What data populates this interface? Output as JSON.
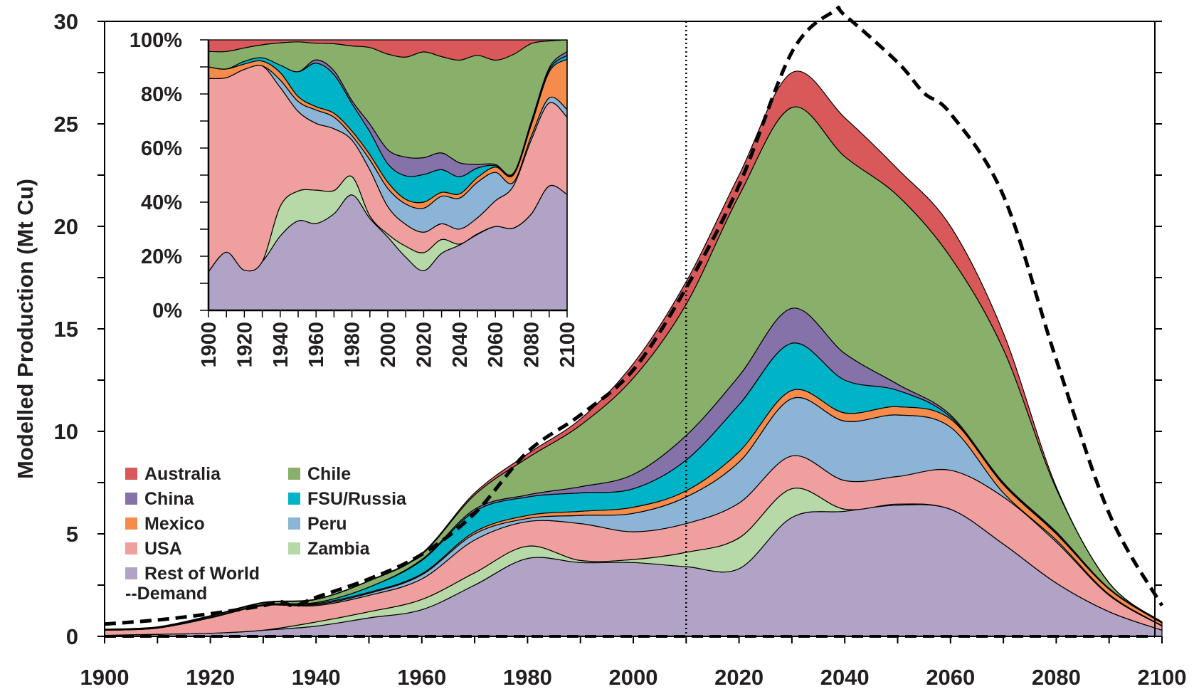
{
  "chart_data": [
    {
      "type": "area",
      "stacked": true,
      "ylabel": "Modelled Production (Mt Cu)",
      "xlabel": "",
      "xlim": [
        1900,
        2100
      ],
      "ylim": [
        0,
        30
      ],
      "x_ticks": [
        "1900",
        "1920",
        "1940",
        "1960",
        "1980",
        "2000",
        "2020",
        "2040",
        "2060",
        "2080",
        "2100"
      ],
      "y_ticks": [
        "0",
        "5",
        "10",
        "15",
        "20",
        "25",
        "30"
      ],
      "grid": false,
      "legend_placement": "bottom-left",
      "vertical_marker_year": 2010,
      "x": [
        1900,
        1910,
        1920,
        1930,
        1940,
        1950,
        1960,
        1970,
        1980,
        1990,
        2000,
        2010,
        2020,
        2030,
        2040,
        2050,
        2060,
        2070,
        2080,
        2090,
        2100
      ],
      "series": [
        {
          "name": "Rest of World",
          "color": "#b0a3c6",
          "values": [
            0.05,
            0.1,
            0.15,
            0.3,
            0.5,
            0.9,
            1.3,
            2.5,
            3.8,
            3.6,
            3.6,
            3.4,
            3.3,
            5.8,
            6.1,
            6.4,
            6.2,
            4.5,
            2.6,
            1.2,
            0.3
          ]
        },
        {
          "name": "Zambia",
          "color": "#b7d9a7",
          "values": [
            0,
            0,
            0,
            0,
            0.2,
            0.3,
            0.5,
            0.6,
            0.6,
            0.1,
            0.15,
            0.7,
            1.5,
            1.4,
            0.1,
            0.05,
            0,
            0,
            0,
            0,
            0
          ]
        },
        {
          "name": "USA",
          "color": "#efa09e",
          "values": [
            0.25,
            0.3,
            0.75,
            1.2,
            0.8,
            0.8,
            1.0,
            1.6,
            1.2,
            1.8,
            1.35,
            1.4,
            1.7,
            1.6,
            1.4,
            1.35,
            1.9,
            2.3,
            2.0,
            0.8,
            0.2
          ]
        },
        {
          "name": "Peru",
          "color": "#8cb4d6",
          "values": [
            0,
            0,
            0,
            0,
            0.05,
            0.1,
            0.2,
            0.3,
            0.15,
            0.4,
            0.9,
            1.3,
            2.0,
            2.8,
            2.9,
            3.0,
            2.1,
            0.2,
            0.1,
            0.05,
            0.02
          ]
        },
        {
          "name": "Mexico",
          "color": "#f58c4c",
          "values": [
            0.015,
            0.015,
            0.02,
            0.03,
            0.05,
            0.05,
            0.05,
            0.1,
            0.15,
            0.2,
            0.3,
            0.3,
            0.5,
            0.4,
            0.4,
            0.4,
            0.4,
            0.4,
            0.3,
            0.25,
            0.13
          ]
        },
        {
          "name": "FSU/Russia",
          "color": "#00b3c6",
          "values": [
            0,
            0,
            0.01,
            0.02,
            0.05,
            0.25,
            0.65,
            1.0,
            0.9,
            0.9,
            0.9,
            1.5,
            2.3,
            2.3,
            1.6,
            0.8,
            0.1,
            0.05,
            0.05,
            0.02,
            0.01
          ]
        },
        {
          "name": "China",
          "color": "#8472a8",
          "values": [
            0,
            0,
            0,
            0,
            0,
            0,
            0.05,
            0.1,
            0.1,
            0.3,
            0.7,
            1.2,
            1.4,
            1.7,
            1.3,
            0.3,
            0.1,
            0.05,
            0.05,
            0.02,
            0.01
          ]
        },
        {
          "name": "Chile",
          "color": "#88b06a",
          "values": [
            0.02,
            0.03,
            0.05,
            0.08,
            0.15,
            0.3,
            0.25,
            0.7,
            1.8,
            3.0,
            4.7,
            6.4,
            8.8,
            9.8,
            9.6,
            9.2,
            7.7,
            6.5,
            2.1,
            0.26,
            0.03
          ]
        },
        {
          "name": "Australia",
          "color": "#d9595b",
          "values": [
            0.015,
            0.02,
            0.03,
            0.03,
            0.02,
            0.02,
            0.05,
            0.1,
            0.2,
            0.3,
            0.7,
            1.1,
            1.0,
            1.7,
            1.9,
            1.3,
            1.5,
            0.8,
            0.1,
            0.01,
            0
          ]
        }
      ],
      "demand": {
        "name": "--Demand",
        "x": [
          1900,
          1910,
          1920,
          1930,
          1933,
          1936,
          1940,
          1950,
          1960,
          1970,
          1980,
          1990,
          2000,
          2010,
          2020,
          2030,
          2038,
          2040,
          2050,
          2055,
          2060,
          2070,
          2080,
          2090,
          2100
        ],
        "values": [
          0.6,
          0.8,
          1.1,
          1.5,
          1.7,
          1.5,
          1.9,
          2.8,
          4.0,
          6.0,
          9.0,
          10.8,
          13.0,
          17.0,
          22.0,
          28.5,
          30.5,
          30.3,
          28.0,
          26.5,
          25.5,
          21.5,
          13.5,
          6.0,
          1.5
        ]
      }
    },
    {
      "type": "area",
      "stacked": true,
      "normalized": true,
      "description_of_values": "share of each series in total production (inset)",
      "xlim": [
        1900,
        2100
      ],
      "ylim": [
        0,
        100
      ],
      "x_ticks": [
        "1900",
        "1920",
        "1940",
        "1960",
        "1980",
        "2000",
        "2020",
        "2040",
        "2060",
        "2080",
        "2100"
      ],
      "y_ticks": [
        "0%",
        "20%",
        "40%",
        "60%",
        "80%",
        "100%"
      ]
    }
  ],
  "legend": {
    "col1": [
      "Australia",
      "China",
      "Mexico",
      "USA",
      "Rest of World"
    ],
    "col2": [
      "Chile",
      "FSU/Russia",
      "Peru",
      "Zambia"
    ],
    "demand_label": "--Demand"
  }
}
